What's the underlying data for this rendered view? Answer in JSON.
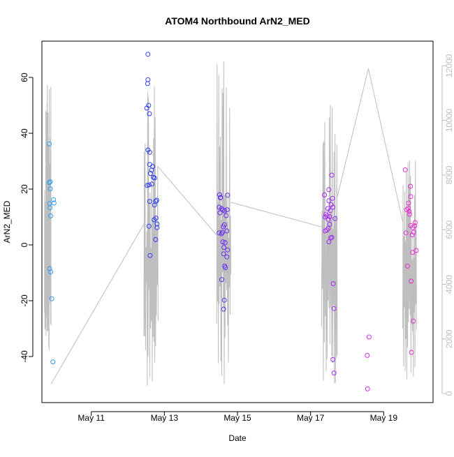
{
  "chart_data": {
    "type": "scatter",
    "title": "ATOM4 Northbound ArN2_MED",
    "xlabel": "Date",
    "ylabel": "ArN2_MED",
    "x_ticks": [
      "May 11",
      "May 13",
      "May 15",
      "May 17",
      "May 19"
    ],
    "x_tick_values": [
      11,
      13,
      15,
      17,
      19
    ],
    "xlim": [
      9.65,
      20.35
    ],
    "y_ticks": [
      -40,
      -20,
      0,
      20,
      40,
      60
    ],
    "ylim": [
      -56.5,
      73.0
    ],
    "y2_ticks": [
      "0",
      "2000",
      "4000",
      "6000",
      "8000",
      "10000",
      "12000"
    ],
    "y2_tick_values": [
      0,
      2000,
      4000,
      6000,
      8000,
      10000,
      12000
    ],
    "y2lim": [
      -330,
      12900
    ],
    "y2_color": "#bebebe",
    "colors": {
      "blue_light": "#2b9df4",
      "blue": "#2b3cf4",
      "purple": "#6a2bf4",
      "violet": "#a22bf4",
      "magenta": "#d42bf4",
      "pink": "#ea2bd2",
      "line": "#bebebe"
    },
    "series": [
      {
        "color_key": "blue_light",
        "points": [
          [
            9.85,
            36.2
          ],
          [
            9.85,
            22.3
          ],
          [
            9.88,
            22.6
          ],
          [
            9.86,
            14.8
          ],
          [
            9.87,
            13.3
          ],
          [
            9.88,
            20.1
          ],
          [
            9.89,
            10.4
          ],
          [
            9.86,
            -8.5
          ],
          [
            9.89,
            -9.7
          ],
          [
            9.92,
            -19.3
          ],
          [
            9.97,
            16.2
          ],
          [
            9.98,
            15.0
          ],
          [
            9.95,
            -41.9
          ]
        ]
      },
      {
        "color_key": "blue",
        "points": [
          [
            12.55,
            68.3
          ],
          [
            12.55,
            59.2
          ],
          [
            12.54,
            57.8
          ],
          [
            12.57,
            50.0
          ],
          [
            12.52,
            49.0
          ],
          [
            12.59,
            47.0
          ],
          [
            12.55,
            34.0
          ],
          [
            12.6,
            33.2
          ],
          [
            12.68,
            28.1
          ],
          [
            12.6,
            28.8
          ],
          [
            12.65,
            26.8
          ],
          [
            12.62,
            25.6
          ],
          [
            12.7,
            24.2
          ],
          [
            12.73,
            24.0
          ],
          [
            12.53,
            21.3
          ],
          [
            12.58,
            21.5
          ],
          [
            12.66,
            21.8
          ],
          [
            12.79,
            16.0
          ],
          [
            12.76,
            15.6
          ],
          [
            12.6,
            15.6
          ],
          [
            12.73,
            14.3
          ],
          [
            12.77,
            9.6
          ],
          [
            12.72,
            9.0
          ],
          [
            12.8,
            7.5
          ],
          [
            12.58,
            6.7
          ],
          [
            12.8,
            6.2
          ],
          [
            12.76,
            1.9
          ],
          [
            12.61,
            -3.8
          ]
        ]
      },
      {
        "color_key": "purple",
        "points": [
          [
            14.51,
            18.0
          ],
          [
            14.54,
            17.0
          ],
          [
            14.53,
            16.9
          ],
          [
            14.5,
            13.5
          ],
          [
            14.57,
            13.0
          ],
          [
            14.6,
            12.5
          ],
          [
            14.65,
            12.2
          ],
          [
            14.52,
            11.5
          ],
          [
            14.73,
            17.8
          ],
          [
            14.72,
            12.6
          ],
          [
            14.69,
            10.5
          ],
          [
            14.64,
            7.2
          ],
          [
            14.61,
            6.5
          ],
          [
            14.71,
            5.0
          ],
          [
            14.56,
            4.0
          ],
          [
            14.59,
            4.5
          ],
          [
            14.5,
            4.3
          ],
          [
            14.6,
            1.1
          ],
          [
            14.66,
            0.8
          ],
          [
            14.63,
            -0.9
          ],
          [
            14.73,
            -1.8
          ],
          [
            14.62,
            -3.2
          ],
          [
            14.71,
            -4.3
          ],
          [
            14.65,
            -7.6
          ],
          [
            14.67,
            -8.2
          ],
          [
            14.57,
            -12.4
          ],
          [
            14.64,
            -19.8
          ],
          [
            14.62,
            -23.0
          ]
        ]
      },
      {
        "color_key": "violet",
        "points": [
          [
            17.38,
            17.9
          ],
          [
            17.45,
            10.4
          ],
          [
            17.4,
            10.0
          ],
          [
            17.42,
            11.0
          ],
          [
            17.5,
            19.8
          ],
          [
            17.58,
            25.0
          ],
          [
            17.5,
            15.8
          ],
          [
            17.56,
            14.4
          ],
          [
            17.6,
            16.7
          ],
          [
            17.47,
            13.0
          ],
          [
            17.54,
            12.3
          ],
          [
            17.61,
            13.5
          ],
          [
            17.48,
            9.2
          ],
          [
            17.52,
            10.1
          ],
          [
            17.67,
            9.4
          ],
          [
            17.52,
            7.4
          ],
          [
            17.48,
            5.9
          ],
          [
            17.4,
            5.0
          ],
          [
            17.45,
            5.3
          ],
          [
            17.58,
            2.7
          ],
          [
            17.55,
            2.5
          ],
          [
            17.5,
            1.1
          ],
          [
            17.62,
            -13.9
          ],
          [
            17.64,
            -22.8
          ],
          [
            17.61,
            -41.1
          ],
          [
            17.64,
            -45.9
          ]
        ]
      },
      {
        "color_key": "magenta",
        "points": [
          [
            18.55,
            -39.6
          ],
          [
            18.6,
            -33.0
          ],
          [
            18.56,
            -51.6
          ]
        ]
      },
      {
        "color_key": "pink",
        "points": [
          [
            19.59,
            26.9
          ],
          [
            19.73,
            21.0
          ],
          [
            19.74,
            17.3
          ],
          [
            19.68,
            15.0
          ],
          [
            19.67,
            13.1
          ],
          [
            19.63,
            12.6
          ],
          [
            19.7,
            12.0
          ],
          [
            19.71,
            11.0
          ],
          [
            19.74,
            6.9
          ],
          [
            19.86,
            8.0
          ],
          [
            19.8,
            6.2
          ],
          [
            19.85,
            6.8
          ],
          [
            19.61,
            4.3
          ],
          [
            19.82,
            4.5
          ],
          [
            19.78,
            3.6
          ],
          [
            19.89,
            -2.0
          ],
          [
            19.79,
            -2.7
          ],
          [
            19.65,
            -7.6
          ],
          [
            19.75,
            -13.0
          ],
          [
            19.81,
            -27.3
          ],
          [
            19.76,
            -38.5
          ]
        ]
      }
    ],
    "right_axis_line": {
      "color_key": "line",
      "bursts": [
        {
          "x0": 9.72,
          "x1": 9.9,
          "lo": 1500,
          "hi": 11900
        },
        {
          "x0": 12.44,
          "x1": 12.83,
          "lo": 200,
          "hi": 11400
        },
        {
          "x0": 14.43,
          "x1": 14.82,
          "lo": 200,
          "hi": 12400
        },
        {
          "x0": 17.3,
          "x1": 17.73,
          "lo": 200,
          "hi": 10600
        },
        {
          "x0": 19.52,
          "x1": 19.9,
          "lo": 200,
          "hi": 9200
        }
      ],
      "connectors": [
        [
          [
            9.9,
            350
          ],
          [
            12.44,
            6200
          ]
        ],
        [
          [
            12.83,
            8300
          ],
          [
            14.43,
            5800
          ]
        ],
        [
          [
            14.82,
            7000
          ],
          [
            17.3,
            6100
          ]
        ],
        [
          [
            17.73,
            7200
          ],
          [
            18.58,
            11900
          ],
          [
            19.52,
            6300
          ]
        ]
      ]
    }
  }
}
